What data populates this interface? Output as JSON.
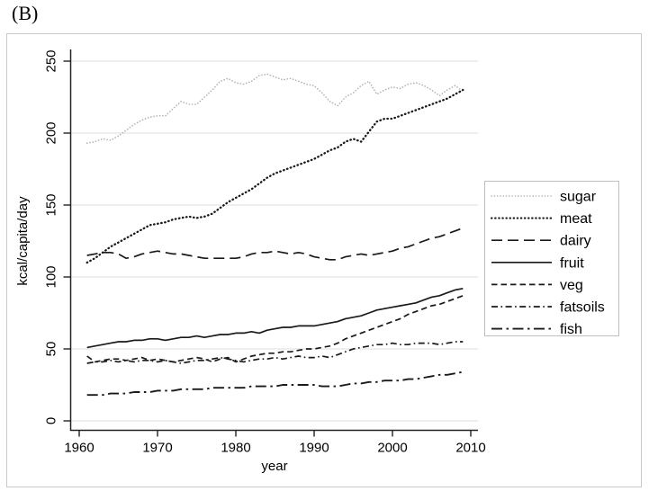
{
  "panel_label": "(B)",
  "chart_data": {
    "type": "line",
    "title": "",
    "xlabel": "year",
    "ylabel": "kcal/capita/day",
    "x_ticks": [
      1960,
      1970,
      1980,
      1990,
      2000,
      2010
    ],
    "y_ticks": [
      0,
      50,
      100,
      150,
      200,
      250
    ],
    "xlim": [
      1959,
      2011
    ],
    "ylim": [
      0,
      250
    ],
    "grid": "horizontal",
    "legend_position": "right",
    "x_start_year": 1961,
    "x_end_year": 2009,
    "series": [
      {
        "name": "sugar",
        "color": "#b0b0b0",
        "width": 1.6,
        "dash": "0.1 3.2",
        "cap": "round",
        "values": [
          193,
          194,
          196,
          195,
          198,
          202,
          206,
          209,
          211,
          212,
          212,
          217,
          222,
          220,
          220,
          225,
          230,
          236,
          238,
          235,
          234,
          236,
          240,
          241,
          239,
          237,
          238,
          236,
          234,
          233,
          228,
          222,
          219,
          225,
          228,
          233,
          236,
          227,
          230,
          232,
          231,
          234,
          235,
          233,
          230,
          226,
          230,
          233,
          229
        ]
      },
      {
        "name": "meat",
        "color": "#1a1a1a",
        "width": 2.3,
        "dash": "0.5 3.6",
        "cap": "round",
        "values": [
          110,
          113,
          117,
          121,
          124,
          127,
          130,
          133,
          136,
          137,
          138,
          140,
          141,
          142,
          141,
          142,
          144,
          148,
          152,
          155,
          158,
          161,
          165,
          169,
          172,
          174,
          176,
          178,
          180,
          182,
          185,
          188,
          190,
          194,
          196,
          194,
          201,
          208,
          210,
          210,
          212,
          214,
          216,
          218,
          220,
          222,
          224,
          227,
          230
        ]
      },
      {
        "name": "dairy",
        "color": "#1a1a1a",
        "width": 1.7,
        "dash": "12 6",
        "cap": "butt",
        "values": [
          115,
          116,
          117,
          117,
          116,
          113,
          114,
          116,
          117,
          118,
          117,
          116,
          116,
          115,
          114,
          113,
          113,
          113,
          113,
          113,
          114,
          116,
          117,
          117,
          118,
          117,
          116,
          117,
          116,
          114,
          113,
          112,
          112,
          114,
          115,
          116,
          115,
          116,
          117,
          118,
          120,
          121,
          123,
          125,
          127,
          128,
          130,
          132,
          134
        ]
      },
      {
        "name": "fruit",
        "color": "#1a1a1a",
        "width": 1.7,
        "dash": "",
        "cap": "butt",
        "values": [
          51,
          52,
          53,
          54,
          55,
          55,
          56,
          56,
          57,
          57,
          56,
          57,
          58,
          58,
          59,
          58,
          59,
          60,
          60,
          61,
          61,
          62,
          61,
          63,
          64,
          65,
          65,
          66,
          66,
          66,
          67,
          68,
          69,
          71,
          72,
          73,
          75,
          77,
          78,
          79,
          80,
          81,
          82,
          84,
          86,
          87,
          89,
          91,
          92
        ]
      },
      {
        "name": "veg",
        "color": "#1a1a1a",
        "width": 1.7,
        "dash": "6.5 4",
        "cap": "butt",
        "values": [
          45,
          41,
          42,
          43,
          43,
          42,
          43,
          44,
          42,
          43,
          42,
          41,
          42,
          43,
          44,
          43,
          41,
          43,
          44,
          41,
          43,
          45,
          46,
          47,
          47,
          48,
          48,
          49,
          50,
          50,
          51,
          52,
          54,
          57,
          59,
          61,
          63,
          65,
          67,
          69,
          71,
          74,
          76,
          78,
          80,
          81,
          83,
          85,
          87
        ]
      },
      {
        "name": "fatsoils",
        "color": "#1a1a1a",
        "width": 1.7,
        "dash": "7 3.5 1.6 3.5",
        "cap": "butt",
        "values": [
          40,
          41,
          41,
          42,
          41,
          42,
          41,
          42,
          42,
          41,
          42,
          41,
          40,
          41,
          42,
          42,
          43,
          44,
          43,
          42,
          41,
          42,
          43,
          43,
          44,
          43,
          44,
          45,
          44,
          44,
          45,
          44,
          46,
          48,
          50,
          51,
          52,
          53,
          53,
          54,
          53,
          53,
          54,
          54,
          54,
          53,
          54,
          55,
          55
        ]
      },
      {
        "name": "fish",
        "color": "#1a1a1a",
        "width": 1.9,
        "dash": "12 4.5 2.5 4.5",
        "cap": "butt",
        "values": [
          18,
          18,
          18,
          19,
          19,
          19,
          20,
          20,
          20,
          21,
          21,
          21,
          22,
          22,
          22,
          22,
          23,
          23,
          23,
          23,
          23,
          24,
          24,
          24,
          24,
          25,
          25,
          25,
          25,
          25,
          24,
          24,
          24,
          25,
          26,
          26,
          27,
          27,
          28,
          28,
          28,
          29,
          29,
          30,
          31,
          32,
          32,
          33,
          34
        ]
      }
    ]
  }
}
